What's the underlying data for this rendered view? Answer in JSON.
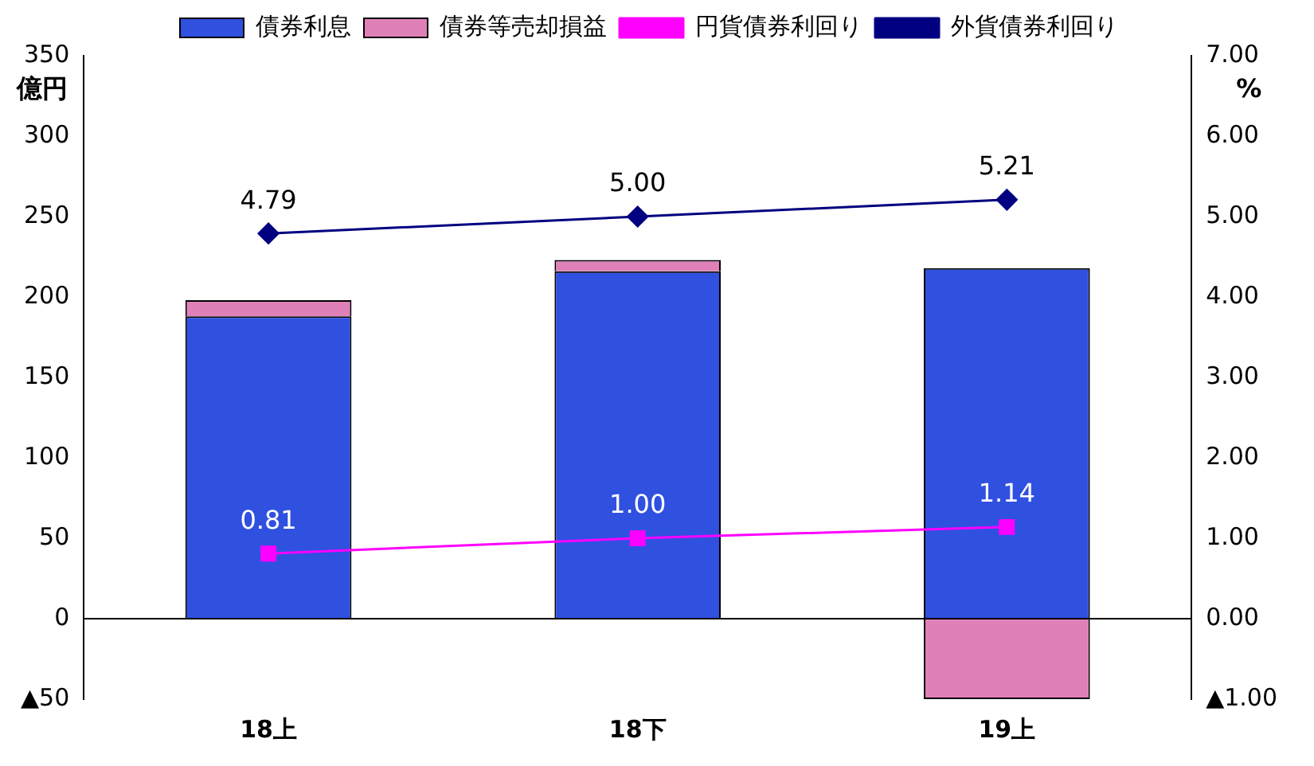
{
  "chart_data": {
    "type": "bar",
    "stacked": true,
    "categories": [
      "18上",
      "18下",
      "19上"
    ],
    "ylabel": "億円",
    "y2label": "%",
    "ylim": [
      -50,
      350
    ],
    "yticks": [
      {
        "value": -50,
        "label": "▲50"
      },
      0,
      50,
      100,
      150,
      200,
      250,
      300,
      350
    ],
    "y2lim": [
      -1,
      7
    ],
    "y2ticks": [
      {
        "value": -1,
        "label": "▲1.00"
      },
      {
        "value": 0,
        "label": "0.00"
      },
      {
        "value": 1,
        "label": "1.00"
      },
      {
        "value": 2,
        "label": "2.00"
      },
      {
        "value": 3,
        "label": "3.00"
      },
      {
        "value": 4,
        "label": "4.00"
      },
      {
        "value": 5,
        "label": "5.00"
      },
      {
        "value": 6,
        "label": "6.00"
      },
      {
        "value": 7,
        "label": "7.00"
      }
    ],
    "grid": false,
    "legend": "top",
    "ref_lines": [
      {
        "axis": "y",
        "value": 0,
        "color": "#000000"
      }
    ],
    "series": [
      {
        "name": "債券利息",
        "color": "#3050e0",
        "values": [
          188,
          216,
          218
        ]
      },
      {
        "name": "債券等売却損益",
        "color": "#e080b8",
        "values": [
          10,
          7,
          -50
        ]
      },
      {
        "name": "円貨債券利回り",
        "type": "line",
        "axis": "y2",
        "marker": "square",
        "color": "#ff00ff",
        "values": [
          0.81,
          1.0,
          1.14
        ],
        "value_labels": [
          "0.81",
          "1.00",
          "1.14"
        ]
      },
      {
        "name": "外貨債券利回り",
        "type": "line",
        "axis": "y2",
        "marker": "diamond",
        "color": "#000080",
        "values": [
          4.79,
          5.0,
          5.21
        ],
        "value_labels": [
          "4.79",
          "5.00",
          "5.21"
        ]
      }
    ]
  }
}
